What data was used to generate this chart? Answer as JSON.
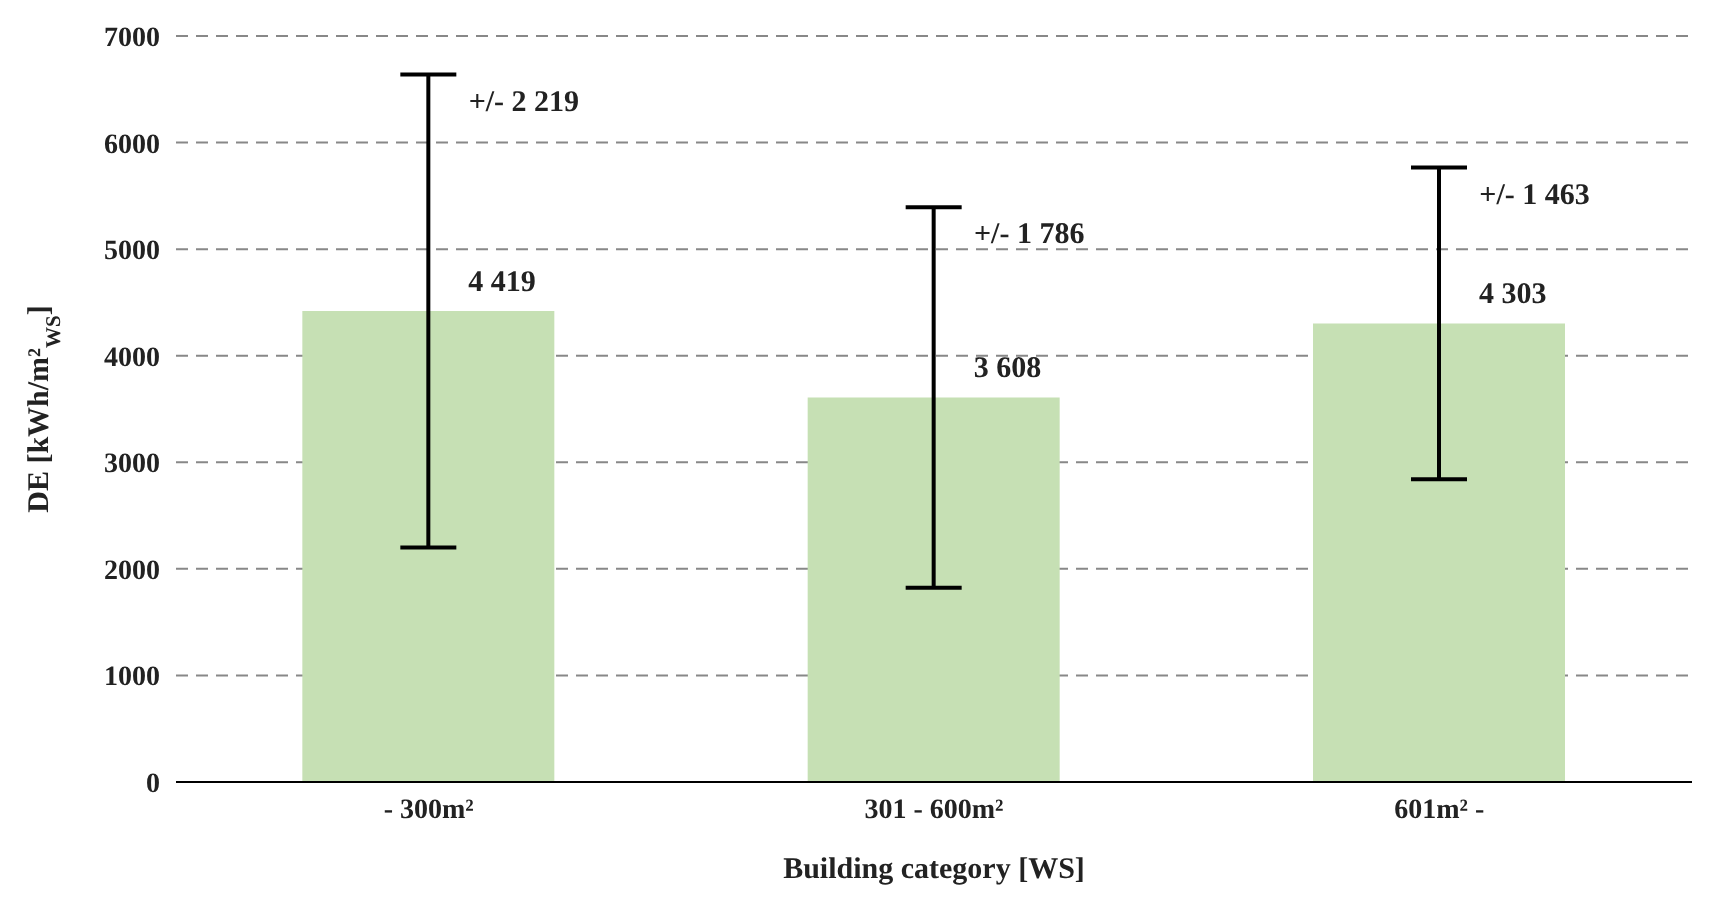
{
  "chart_data": {
    "type": "bar",
    "xlabel": "Building category [WS]",
    "ylabel": "DE [kWh/m²$_{WS}$]",
    "categories": [
      "- 300m²",
      "301 - 600m²",
      "601m² -"
    ],
    "values": [
      4419,
      3608,
      4303
    ],
    "color": "#c6e0b4",
    "errors": [
      2219,
      1786,
      1463
    ],
    "value_labels": [
      "4 419",
      "3 608",
      "4 303"
    ],
    "annotations": [
      {
        "text": "+/- 2 219",
        "x": "- 300m²",
        "y": 6638
      },
      {
        "text": "+/- 1 786",
        "x": "301 - 600m²",
        "y": 5394
      },
      {
        "text": "+/- 1 463",
        "x": "601m² -",
        "y": 5766
      }
    ],
    "ylim": [
      0,
      7000
    ],
    "yticks": [
      0,
      1000,
      2000,
      3000,
      4000,
      5000,
      6000,
      7000
    ],
    "grid": "y"
  }
}
